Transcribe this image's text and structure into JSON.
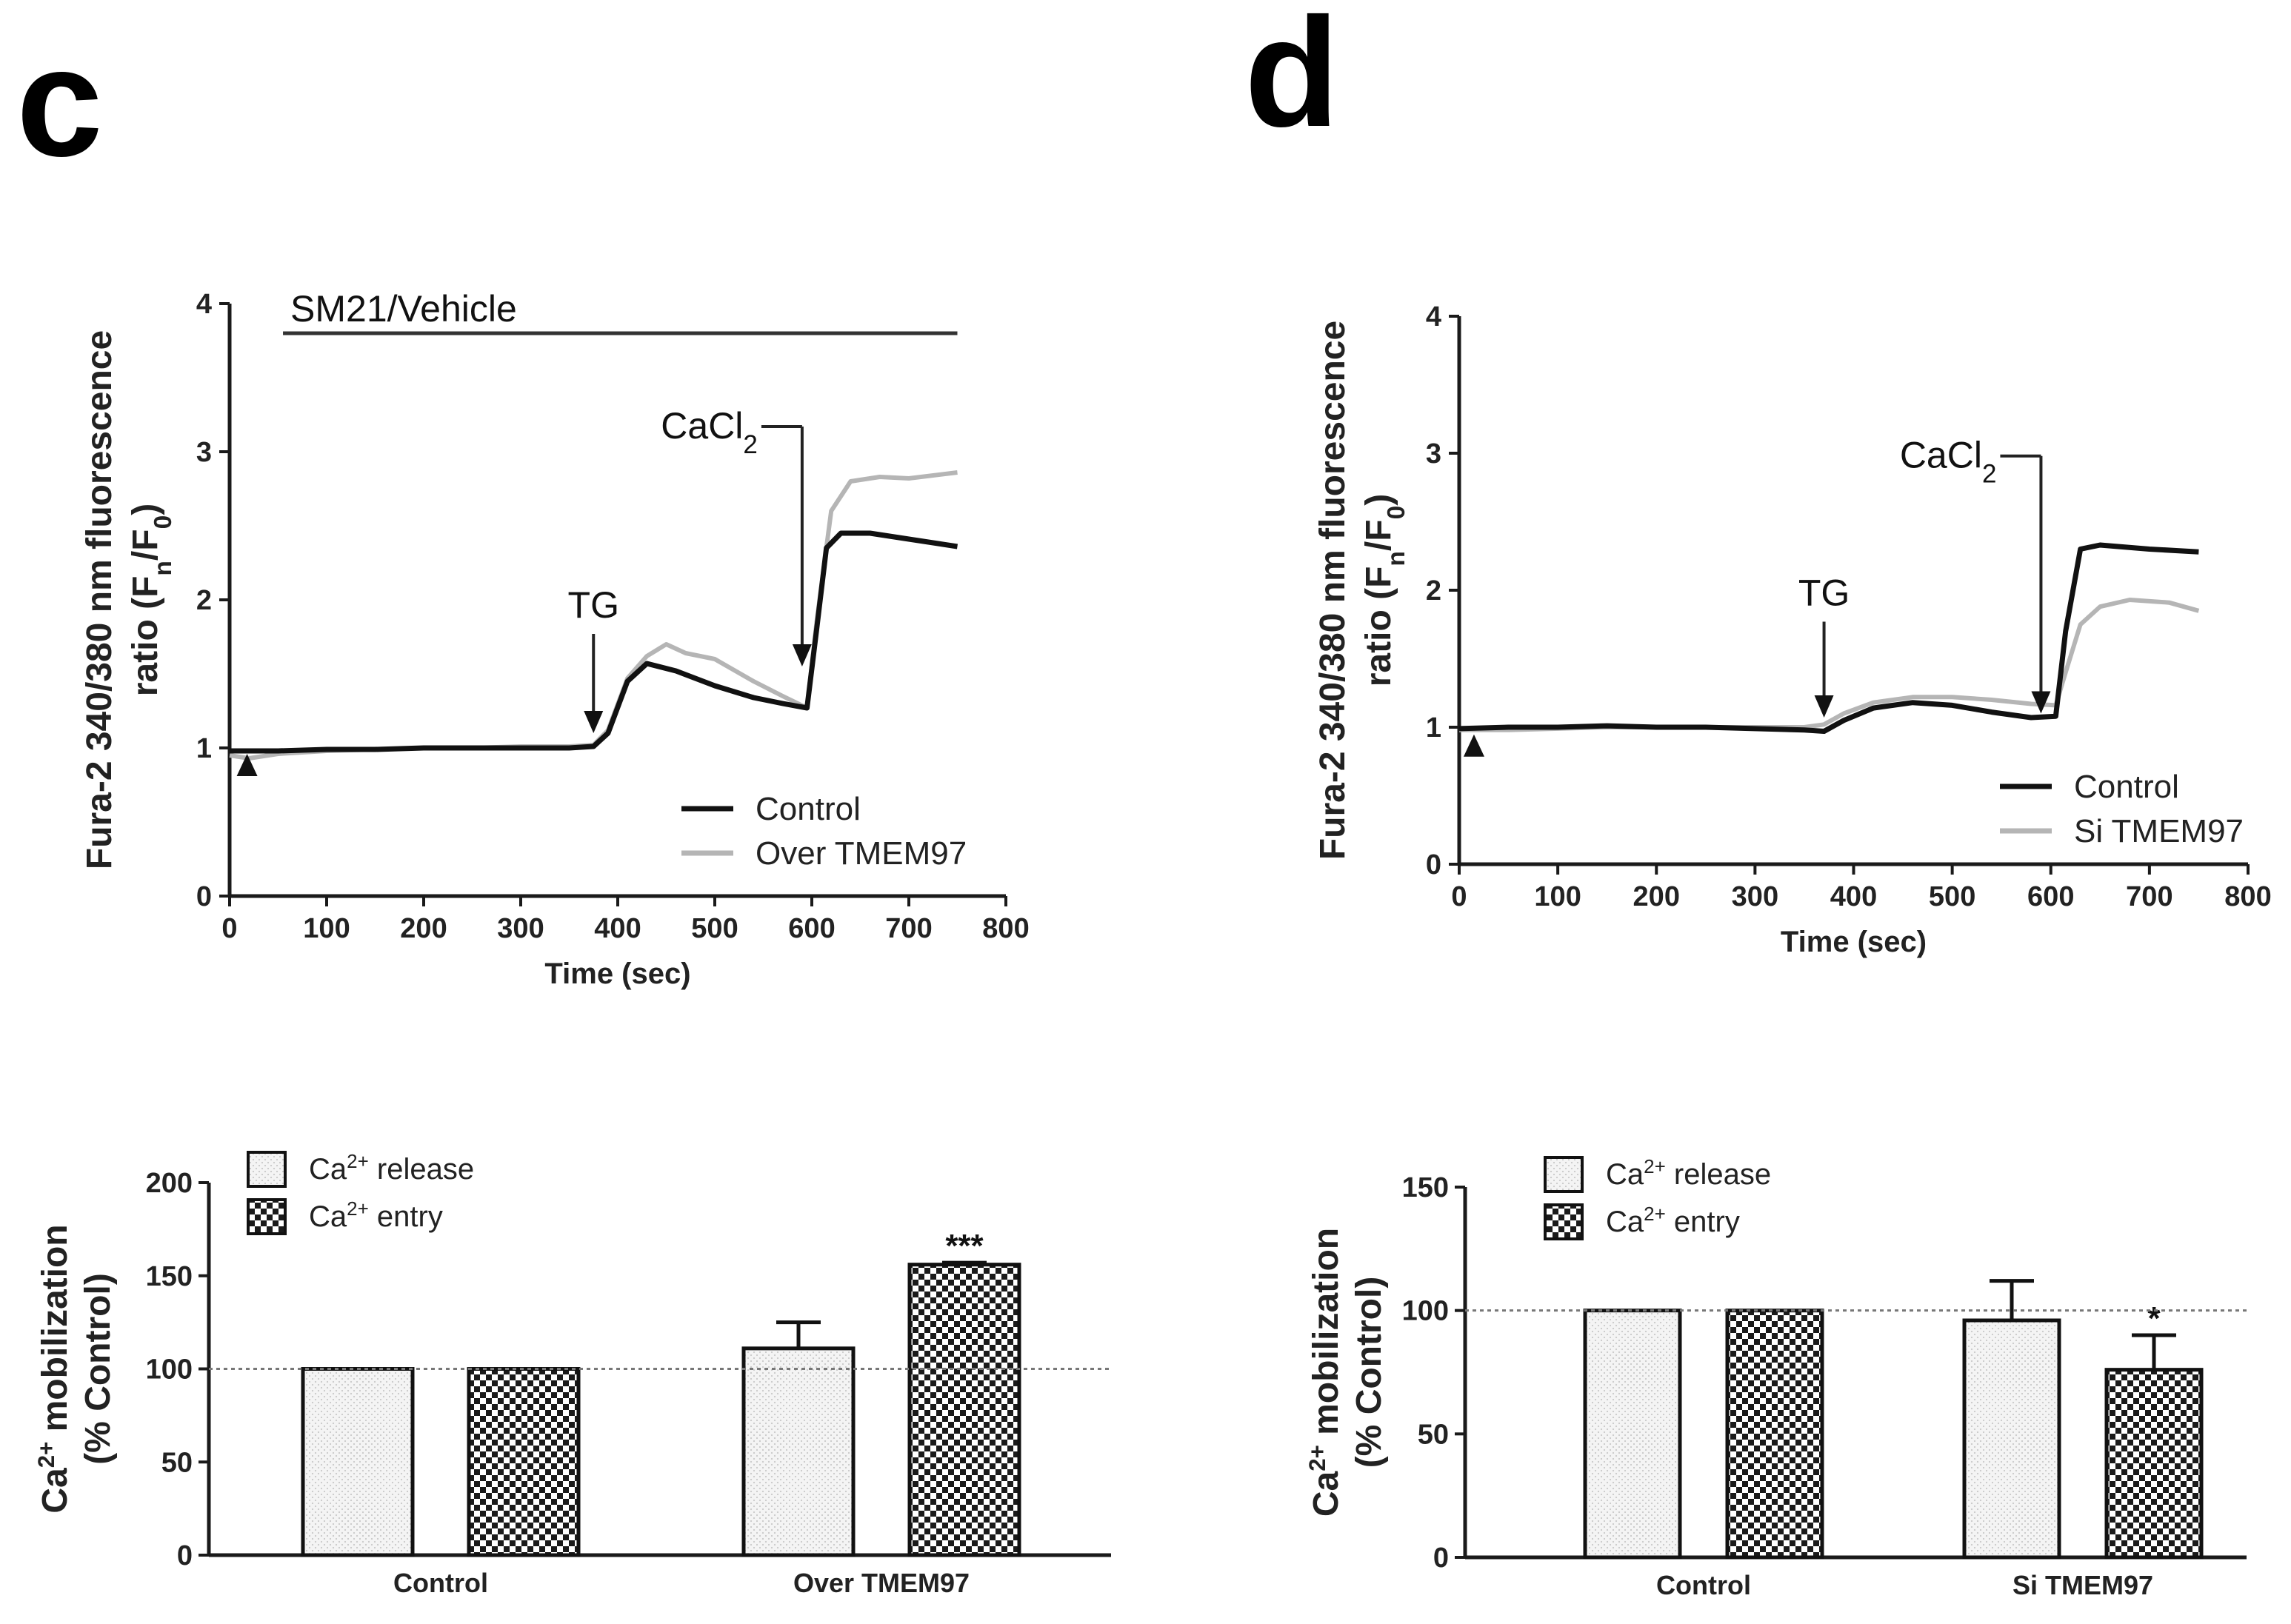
{
  "panels": {
    "c": {
      "letter": "c"
    },
    "d": {
      "letter": "d"
    }
  },
  "chart_data": [
    {
      "id": "c-trace",
      "type": "line",
      "ylabel_line1": "Fura-2 340/380 nm fluorescence",
      "ylabel_line2": "ratio",
      "ylabel_units": "(Fn/F0)",
      "xlabel": "Time (sec)",
      "xlim": [
        0,
        800
      ],
      "ylim": [
        0,
        4
      ],
      "xticks": [
        0,
        100,
        200,
        300,
        400,
        500,
        600,
        700,
        800
      ],
      "yticks": [
        0,
        1,
        2,
        3,
        4
      ],
      "annotations": {
        "treatment_bar_label": "SM21/Vehicle",
        "treatment_bar_range": [
          55,
          750
        ],
        "tg_label": "TG",
        "tg_time": 375,
        "cacl2_label": "CaCl2",
        "cacl2_time": 590,
        "start_marker_time": 18
      },
      "series": [
        {
          "name": "Control",
          "color": "#111111",
          "x": [
            0,
            50,
            100,
            150,
            200,
            250,
            300,
            350,
            375,
            390,
            410,
            430,
            460,
            500,
            540,
            570,
            595,
            605,
            615,
            630,
            660,
            700,
            750
          ],
          "y": [
            0.98,
            0.98,
            0.99,
            0.99,
            1.0,
            1.0,
            1.0,
            1.0,
            1.01,
            1.1,
            1.45,
            1.57,
            1.52,
            1.42,
            1.34,
            1.3,
            1.27,
            1.8,
            2.35,
            2.45,
            2.45,
            2.41,
            2.36
          ]
        },
        {
          "name": "Over TMEM97",
          "color": "#b5b5b5",
          "x": [
            0,
            20,
            50,
            100,
            150,
            200,
            250,
            300,
            350,
            375,
            390,
            410,
            430,
            450,
            470,
            500,
            540,
            570,
            595,
            605,
            620,
            640,
            670,
            700,
            750
          ],
          "y": [
            0.95,
            0.93,
            0.96,
            0.98,
            0.99,
            1.0,
            1.0,
            1.01,
            1.01,
            1.02,
            1.12,
            1.47,
            1.62,
            1.7,
            1.64,
            1.6,
            1.45,
            1.35,
            1.27,
            1.85,
            2.6,
            2.8,
            2.83,
            2.82,
            2.86
          ]
        }
      ],
      "legend": [
        "Control",
        "Over TMEM97"
      ]
    },
    {
      "id": "d-trace",
      "type": "line",
      "ylabel_line1": "Fura-2 340/380 nm fluorescence",
      "ylabel_line2": "ratio",
      "ylabel_units": "(Fn/F0)",
      "xlabel": "Time (sec)",
      "xlim": [
        0,
        800
      ],
      "ylim": [
        0,
        4
      ],
      "xticks": [
        0,
        100,
        200,
        300,
        400,
        500,
        600,
        700,
        800
      ],
      "yticks": [
        0,
        1,
        2,
        3,
        4
      ],
      "annotations": {
        "tg_label": "TG",
        "tg_time": 370,
        "cacl2_label": "CaCl2",
        "cacl2_time": 590,
        "start_marker_time": 15
      },
      "series": [
        {
          "name": "Control",
          "color": "#111111",
          "x": [
            0,
            50,
            100,
            150,
            200,
            250,
            300,
            350,
            370,
            390,
            420,
            460,
            500,
            540,
            580,
            605,
            615,
            630,
            650,
            700,
            750
          ],
          "y": [
            0.99,
            1.0,
            1.0,
            1.01,
            1.0,
            1.0,
            0.99,
            0.98,
            0.97,
            1.05,
            1.14,
            1.18,
            1.16,
            1.11,
            1.07,
            1.08,
            1.7,
            2.3,
            2.33,
            2.3,
            2.28
          ]
        },
        {
          "name": "Si TMEM97",
          "color": "#b5b5b5",
          "x": [
            0,
            50,
            100,
            150,
            200,
            250,
            300,
            350,
            370,
            390,
            420,
            460,
            500,
            540,
            580,
            605,
            615,
            630,
            650,
            680,
            720,
            750
          ],
          "y": [
            0.98,
            0.98,
            0.99,
            1.0,
            1.0,
            1.0,
            1.0,
            1.0,
            1.02,
            1.1,
            1.18,
            1.22,
            1.22,
            1.2,
            1.17,
            1.16,
            1.4,
            1.75,
            1.88,
            1.93,
            1.91,
            1.85
          ]
        }
      ],
      "legend": [
        "Control",
        "Si TMEM97"
      ]
    },
    {
      "id": "c-bars",
      "type": "bar",
      "ylabel_line1": "Ca2+ mobilization",
      "ylabel_line2": "(% Control)",
      "ylim": [
        0,
        200
      ],
      "yticks": [
        0,
        50,
        100,
        150,
        200
      ],
      "reference_line": 100,
      "categories": [
        "Control",
        "Over TMEM97"
      ],
      "series": [
        {
          "name": "Ca2+ release",
          "values": [
            100,
            111
          ],
          "errors": [
            0,
            14
          ]
        },
        {
          "name": "Ca2+ entry",
          "values": [
            100,
            156
          ],
          "errors": [
            0,
            1
          ]
        }
      ],
      "significance": [
        {
          "category": "Over TMEM97",
          "series": "Ca2+ entry",
          "label": "***"
        }
      ]
    },
    {
      "id": "d-bars",
      "type": "bar",
      "ylabel_line1": "Ca2+ mobilization",
      "ylabel_line2": "(% Control)",
      "ylim": [
        0,
        150
      ],
      "yticks": [
        0,
        50,
        100,
        150
      ],
      "reference_line": 100,
      "categories": [
        "Control",
        "Si TMEM97"
      ],
      "series": [
        {
          "name": "Ca2+ release",
          "values": [
            100,
            96
          ],
          "errors": [
            0,
            16
          ]
        },
        {
          "name": "Ca2+ entry",
          "values": [
            100,
            76
          ],
          "errors": [
            0,
            14
          ]
        }
      ],
      "significance": [
        {
          "category": "Si TMEM97",
          "series": "Ca2+ entry",
          "label": "*"
        }
      ]
    }
  ]
}
